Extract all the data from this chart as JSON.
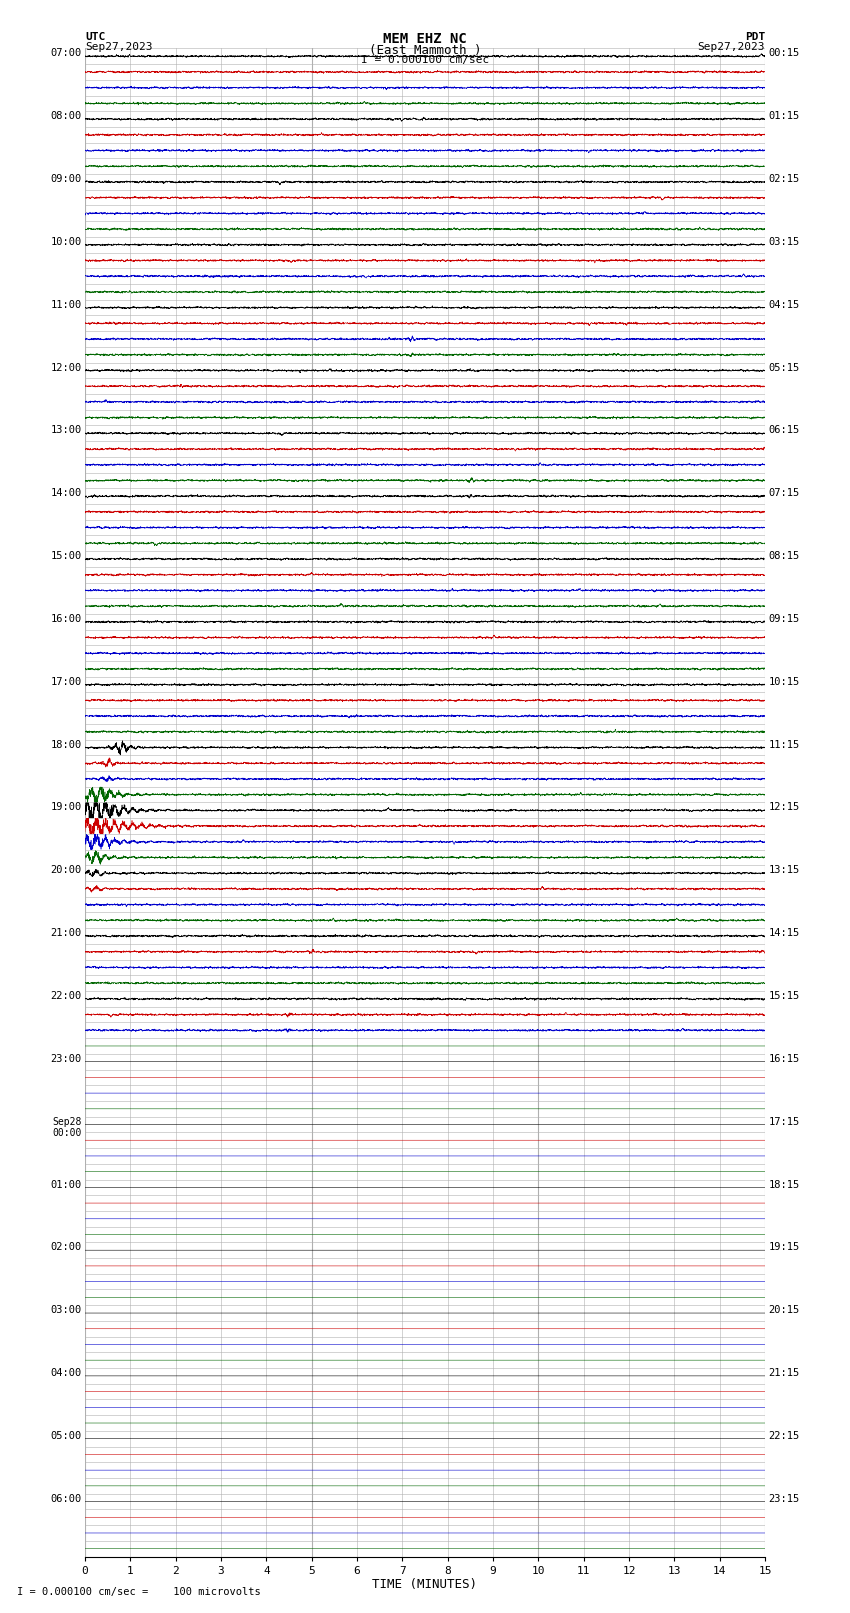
{
  "title_line1": "MEM EHZ NC",
  "title_line2": "(East Mammoth )",
  "title_line3": "I = 0.000100 cm/sec",
  "left_label_top": "UTC",
  "left_label_date": "Sep27,2023",
  "right_label_top": "PDT",
  "right_label_date": "Sep27,2023",
  "xlabel": "TIME (MINUTES)",
  "footer": "I = 0.000100 cm/sec =    100 microvolts",
  "bg_color": "#ffffff",
  "grid_color": "#b0b0b0",
  "trace_colors": [
    "#000000",
    "#cc0000",
    "#0000cc",
    "#006600"
  ],
  "utc_labels_left": [
    [
      "07:00",
      0
    ],
    [
      "08:00",
      4
    ],
    [
      "09:00",
      8
    ],
    [
      "10:00",
      12
    ],
    [
      "11:00",
      16
    ],
    [
      "12:00",
      20
    ],
    [
      "13:00",
      24
    ],
    [
      "14:00",
      28
    ],
    [
      "15:00",
      32
    ],
    [
      "16:00",
      36
    ],
    [
      "17:00",
      40
    ],
    [
      "18:00",
      44
    ],
    [
      "19:00",
      48
    ],
    [
      "20:00",
      52
    ],
    [
      "21:00",
      56
    ],
    [
      "22:00",
      60
    ],
    [
      "23:00",
      64
    ],
    [
      "Sep28\n00:00",
      68
    ],
    [
      "01:00",
      72
    ],
    [
      "02:00",
      76
    ],
    [
      "03:00",
      80
    ],
    [
      "04:00",
      84
    ],
    [
      "05:00",
      88
    ],
    [
      "06:00",
      92
    ]
  ],
  "pdt_labels_right": [
    [
      "00:15",
      0
    ],
    [
      "01:15",
      4
    ],
    [
      "02:15",
      8
    ],
    [
      "03:15",
      12
    ],
    [
      "04:15",
      16
    ],
    [
      "05:15",
      20
    ],
    [
      "06:15",
      24
    ],
    [
      "07:15",
      28
    ],
    [
      "08:15",
      32
    ],
    [
      "09:15",
      36
    ],
    [
      "10:15",
      40
    ],
    [
      "11:15",
      44
    ],
    [
      "12:15",
      48
    ],
    [
      "13:15",
      52
    ],
    [
      "14:15",
      56
    ],
    [
      "15:15",
      60
    ],
    [
      "16:15",
      64
    ],
    [
      "17:15",
      68
    ],
    [
      "18:15",
      72
    ],
    [
      "19:15",
      76
    ],
    [
      "20:15",
      80
    ],
    [
      "21:15",
      84
    ],
    [
      "22:15",
      88
    ],
    [
      "23:15",
      92
    ]
  ],
  "n_rows": 96,
  "active_rows": 63,
  "n_minutes": 15,
  "figsize": [
    8.5,
    16.13
  ],
  "dpi": 100,
  "x_ticks": [
    0,
    1,
    2,
    3,
    4,
    5,
    6,
    7,
    8,
    9,
    10,
    11,
    12,
    13,
    14,
    15
  ],
  "noise_seed": 42,
  "noise_amplitude": 0.06,
  "eq_events": [
    {
      "row": 18,
      "minute": 7.2,
      "amplitude": 2.5,
      "duration": 0.15,
      "freq": 10
    },
    {
      "row": 19,
      "minute": 7.2,
      "amplitude": 1.5,
      "duration": 0.12,
      "freq": 10
    },
    {
      "row": 27,
      "minute": 8.5,
      "amplitude": 2.0,
      "duration": 0.2,
      "freq": 8
    },
    {
      "row": 28,
      "minute": 8.5,
      "amplitude": 1.5,
      "duration": 0.15,
      "freq": 8
    },
    {
      "row": 44,
      "minute": 0.8,
      "amplitude": 5.0,
      "duration": 0.4,
      "freq": 6
    },
    {
      "row": 45,
      "minute": 0.5,
      "amplitude": 4.0,
      "duration": 0.3,
      "freq": 6
    },
    {
      "row": 46,
      "minute": 0.5,
      "amplitude": 3.0,
      "duration": 0.25,
      "freq": 6
    },
    {
      "row": 47,
      "minute": 0.3,
      "amplitude": 8.0,
      "duration": 0.8,
      "freq": 5
    },
    {
      "row": 48,
      "minute": 0.2,
      "amplitude": 12.0,
      "duration": 1.2,
      "freq": 5
    },
    {
      "row": 49,
      "minute": 0.2,
      "amplitude": 10.0,
      "duration": 1.5,
      "freq": 5
    },
    {
      "row": 50,
      "minute": 0.2,
      "amplitude": 7.0,
      "duration": 1.0,
      "freq": 5
    },
    {
      "row": 51,
      "minute": 0.2,
      "amplitude": 5.0,
      "duration": 0.8,
      "freq": 5
    },
    {
      "row": 52,
      "minute": 0.2,
      "amplitude": 3.0,
      "duration": 0.6,
      "freq": 5
    },
    {
      "row": 53,
      "minute": 0.2,
      "amplitude": 2.0,
      "duration": 0.5,
      "freq": 5
    },
    {
      "row": 57,
      "minute": 5.0,
      "amplitude": 1.5,
      "duration": 0.2,
      "freq": 8
    },
    {
      "row": 61,
      "minute": 4.5,
      "amplitude": 1.5,
      "duration": 0.2,
      "freq": 8
    },
    {
      "row": 62,
      "minute": 4.5,
      "amplitude": 1.5,
      "duration": 0.2,
      "freq": 8
    }
  ]
}
